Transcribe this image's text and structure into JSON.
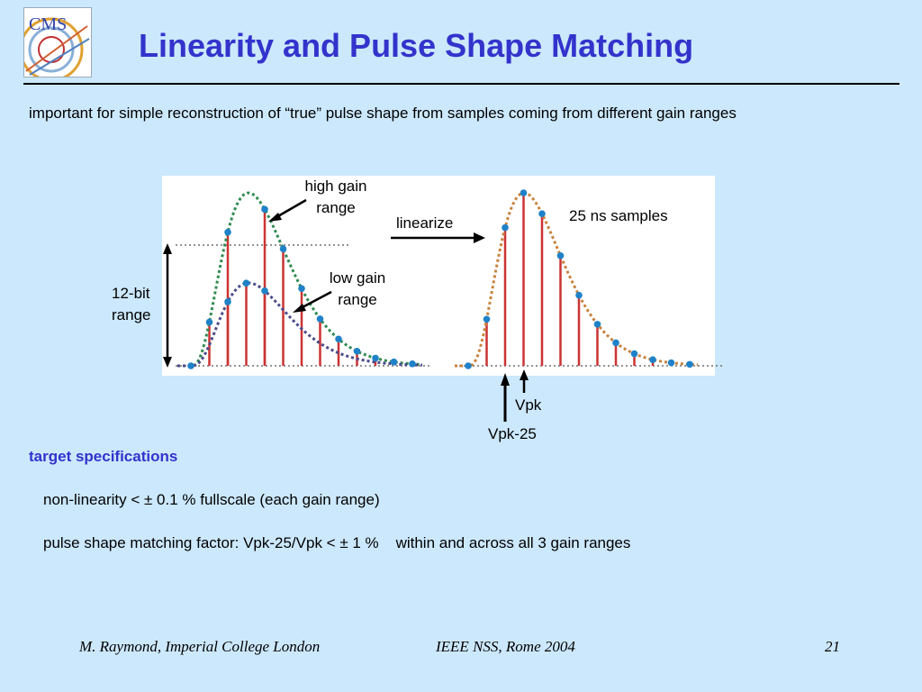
{
  "logo": {
    "text": "CMS",
    "icon": "cms-logo-icon"
  },
  "slide": {
    "title": "Linearity and Pulse Shape Matching"
  },
  "intro": "important for simple reconstruction of “true” pulse shape from samples coming from different gain ranges",
  "figure": {
    "labels": {
      "high_gain_1": "high gain",
      "high_gain_2": "range",
      "low_gain_1": "low gain",
      "low_gain_2": "range",
      "bit_range_1": "12-bit",
      "bit_range_2": "range",
      "linearize": "linearize",
      "ns_samples": "25 ns samples",
      "vpk": "Vpk",
      "vpk25": "Vpk-25"
    },
    "colors": {
      "high_gain_curve": "#2e8b4f",
      "low_gain_curve": "#4a4a8a",
      "linearized_curve": "#c8823c",
      "sample_stems": "#cc3333",
      "sample_points": "#1f82c8"
    }
  },
  "specs": {
    "heading": "target specifications",
    "line1": "non-linearity < ± 0.1 % fullscale (each gain range)",
    "line2": "pulse shape matching factor: Vpk-25/Vpk < ± 1 %    within and across all 3 gain ranges"
  },
  "footer": {
    "author": "M. Raymond, Imperial College London",
    "conference": "IEEE NSS, Rome 2004",
    "page": "21"
  }
}
